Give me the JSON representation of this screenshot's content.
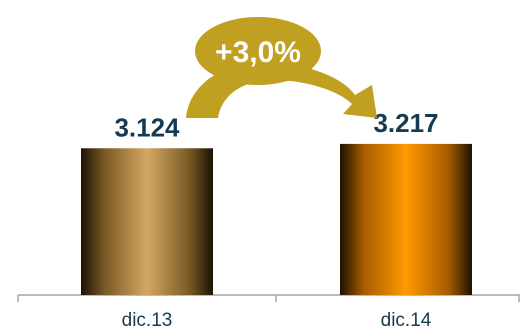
{
  "chart_data": {
    "type": "bar",
    "categories": [
      "dic.13",
      "dic.14"
    ],
    "values": [
      3124,
      3217
    ],
    "value_labels": [
      "3.124",
      "3.217"
    ],
    "bar_colors": [
      "#d4a862",
      "#ff9a00"
    ],
    "growth_label": "+3,0%",
    "arrow_color": "#c0a020",
    "text_color": "#143b52",
    "axis_color": "#a6a6a6",
    "ylim": [
      0,
      3300
    ],
    "grid": false,
    "legend": "none"
  }
}
